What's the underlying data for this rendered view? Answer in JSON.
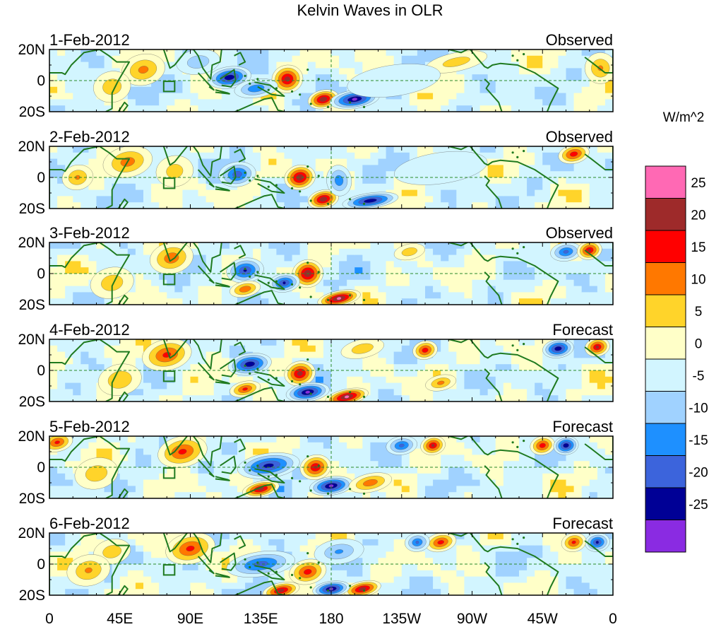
{
  "chart_data": {
    "type": "heatmap",
    "title": "Kelvin Waves in OLR",
    "units_label": "W/m^2",
    "lat_tick_labels": [
      "20N",
      "0",
      "20S"
    ],
    "lon_tick_labels": [
      "0",
      "45E",
      "90E",
      "135E",
      "180",
      "135W",
      "90W",
      "45W",
      "0"
    ],
    "lon_range": [
      0,
      360
    ],
    "lat_range": [
      -20,
      20
    ],
    "colorbar": {
      "levels": [
        "25",
        "20",
        "15",
        "10",
        "5",
        "0",
        "-5",
        "-10",
        "-15",
        "-20",
        "-25"
      ],
      "colors": [
        "#ff69b4",
        "#9e2a2a",
        "#ff0000",
        "#ff7800",
        "#ffd42a",
        "#ffffc8",
        "#d2f5ff",
        "#a0d2ff",
        "#1e90ff",
        "#3c64dc",
        "#000096",
        "#8a2be2"
      ]
    },
    "panels": [
      {
        "date": "1-Feb-2012",
        "status": "Observed",
        "blobs": [
          {
            "lon": 115,
            "lat": 2,
            "w": 14,
            "h": 7,
            "v": -24
          },
          {
            "lon": 152,
            "lat": 1,
            "w": 10,
            "h": 9,
            "v": 22
          },
          {
            "lon": 175,
            "lat": -12,
            "w": 10,
            "h": 6,
            "v": 24
          },
          {
            "lon": 195,
            "lat": -12,
            "w": 16,
            "h": 6,
            "v": -26
          },
          {
            "lon": 60,
            "lat": 7,
            "w": 14,
            "h": 10,
            "v": 11
          },
          {
            "lon": 132,
            "lat": -5,
            "w": 14,
            "h": 6,
            "v": -14
          },
          {
            "lon": 40,
            "lat": -4,
            "w": 12,
            "h": 10,
            "v": 8
          },
          {
            "lon": 260,
            "lat": 12,
            "w": 20,
            "h": 6,
            "v": 7
          },
          {
            "lon": 352,
            "lat": 8,
            "w": 10,
            "h": 10,
            "v": 10
          },
          {
            "lon": 95,
            "lat": 12,
            "w": 14,
            "h": 8,
            "v": -8
          },
          {
            "lon": 220,
            "lat": 0,
            "w": 30,
            "h": 10,
            "v": -4
          }
        ]
      },
      {
        "date": "2-Feb-2012",
        "status": "Observed",
        "blobs": [
          {
            "lon": 160,
            "lat": 0,
            "w": 10,
            "h": 8,
            "v": 24
          },
          {
            "lon": 175,
            "lat": -14,
            "w": 10,
            "h": 6,
            "v": 24
          },
          {
            "lon": 185,
            "lat": -2,
            "w": 8,
            "h": 10,
            "v": -13
          },
          {
            "lon": 205,
            "lat": -15,
            "w": 18,
            "h": 5,
            "v": -24
          },
          {
            "lon": 50,
            "lat": 10,
            "w": 16,
            "h": 10,
            "v": 12
          },
          {
            "lon": 120,
            "lat": 2,
            "w": 12,
            "h": 8,
            "v": -18
          },
          {
            "lon": 335,
            "lat": 15,
            "w": 10,
            "h": 6,
            "v": 18
          },
          {
            "lon": 18,
            "lat": 0,
            "w": 10,
            "h": 8,
            "v": 10
          },
          {
            "lon": 80,
            "lat": 4,
            "w": 12,
            "h": 10,
            "v": 7
          },
          {
            "lon": 250,
            "lat": 6,
            "w": 30,
            "h": 10,
            "v": -4
          }
        ]
      },
      {
        "date": "3-Feb-2012",
        "status": "Observed",
        "blobs": [
          {
            "lon": 165,
            "lat": 0,
            "w": 10,
            "h": 9,
            "v": 24
          },
          {
            "lon": 185,
            "lat": -16,
            "w": 14,
            "h": 5,
            "v": 26
          },
          {
            "lon": 150,
            "lat": -6,
            "w": 10,
            "h": 6,
            "v": -20
          },
          {
            "lon": 125,
            "lat": 2,
            "w": 12,
            "h": 8,
            "v": -20
          },
          {
            "lon": 78,
            "lat": 10,
            "w": 14,
            "h": 10,
            "v": 13
          },
          {
            "lon": 125,
            "lat": -10,
            "w": 10,
            "h": 5,
            "v": 14
          },
          {
            "lon": 330,
            "lat": 14,
            "w": 10,
            "h": 6,
            "v": -16
          },
          {
            "lon": 345,
            "lat": 15,
            "w": 8,
            "h": 6,
            "v": 20
          },
          {
            "lon": 230,
            "lat": 14,
            "w": 10,
            "h": 5,
            "v": 8
          },
          {
            "lon": 40,
            "lat": -6,
            "w": 14,
            "h": 10,
            "v": 8
          }
        ]
      },
      {
        "date": "4-Feb-2012",
        "status": "Forecast",
        "blobs": [
          {
            "lon": 128,
            "lat": 4,
            "w": 14,
            "h": 7,
            "v": -24
          },
          {
            "lon": 160,
            "lat": -2,
            "w": 10,
            "h": 8,
            "v": 22
          },
          {
            "lon": 165,
            "lat": -14,
            "w": 14,
            "h": 6,
            "v": -26
          },
          {
            "lon": 190,
            "lat": -17,
            "w": 14,
            "h": 5,
            "v": 26
          },
          {
            "lon": 75,
            "lat": 10,
            "w": 16,
            "h": 10,
            "v": 16
          },
          {
            "lon": 125,
            "lat": -12,
            "w": 10,
            "h": 5,
            "v": 16
          },
          {
            "lon": 240,
            "lat": 13,
            "w": 8,
            "h": 6,
            "v": 18
          },
          {
            "lon": 325,
            "lat": 14,
            "w": 10,
            "h": 6,
            "v": -24
          },
          {
            "lon": 350,
            "lat": 15,
            "w": 8,
            "h": 6,
            "v": 20
          },
          {
            "lon": 200,
            "lat": 14,
            "w": 14,
            "h": 6,
            "v": 8
          },
          {
            "lon": 45,
            "lat": -6,
            "w": 14,
            "h": 10,
            "v": 9
          },
          {
            "lon": 250,
            "lat": -8,
            "w": 10,
            "h": 5,
            "v": 11
          }
        ]
      },
      {
        "date": "5-Feb-2012",
        "status": "Forecast",
        "blobs": [
          {
            "lon": 140,
            "lat": 1,
            "w": 20,
            "h": 8,
            "v": -22
          },
          {
            "lon": 170,
            "lat": 0,
            "w": 10,
            "h": 8,
            "v": 20
          },
          {
            "lon": 180,
            "lat": -12,
            "w": 14,
            "h": 6,
            "v": -26
          },
          {
            "lon": 135,
            "lat": -14,
            "w": 12,
            "h": 5,
            "v": 22
          },
          {
            "lon": 205,
            "lat": -10,
            "w": 14,
            "h": 6,
            "v": 13
          },
          {
            "lon": 85,
            "lat": 10,
            "w": 16,
            "h": 10,
            "v": 16
          },
          {
            "lon": 225,
            "lat": 14,
            "w": 10,
            "h": 6,
            "v": -16
          },
          {
            "lon": 245,
            "lat": 14,
            "w": 8,
            "h": 6,
            "v": 20
          },
          {
            "lon": 315,
            "lat": 14,
            "w": 8,
            "h": 6,
            "v": 18
          },
          {
            "lon": 330,
            "lat": 14,
            "w": 8,
            "h": 6,
            "v": -24
          },
          {
            "lon": 5,
            "lat": 16,
            "w": 10,
            "h": 6,
            "v": 16
          },
          {
            "lon": 30,
            "lat": -4,
            "w": 14,
            "h": 10,
            "v": 8
          }
        ]
      },
      {
        "date": "6-Feb-2012",
        "status": "Forecast",
        "blobs": [
          {
            "lon": 135,
            "lat": 0,
            "w": 22,
            "h": 8,
            "v": -17
          },
          {
            "lon": 165,
            "lat": -5,
            "w": 12,
            "h": 8,
            "v": 17
          },
          {
            "lon": 200,
            "lat": -16,
            "w": 12,
            "h": 5,
            "v": 23
          },
          {
            "lon": 180,
            "lat": -16,
            "w": 12,
            "h": 5,
            "v": -26
          },
          {
            "lon": 148,
            "lat": -17,
            "w": 12,
            "h": 5,
            "v": 22
          },
          {
            "lon": 90,
            "lat": 10,
            "w": 16,
            "h": 10,
            "v": 16
          },
          {
            "lon": 250,
            "lat": 14,
            "w": 10,
            "h": 6,
            "v": 17
          },
          {
            "lon": 235,
            "lat": 14,
            "w": 8,
            "h": 6,
            "v": -15
          },
          {
            "lon": 350,
            "lat": 14,
            "w": 8,
            "h": 6,
            "v": -20
          },
          {
            "lon": 335,
            "lat": 14,
            "w": 8,
            "h": 6,
            "v": 16
          },
          {
            "lon": 40,
            "lat": 8,
            "w": 12,
            "h": 8,
            "v": 8
          },
          {
            "lon": 25,
            "lat": -4,
            "w": 14,
            "h": 10,
            "v": 10
          },
          {
            "lon": 185,
            "lat": 8,
            "w": 16,
            "h": 8,
            "v": -10
          }
        ]
      }
    ]
  }
}
